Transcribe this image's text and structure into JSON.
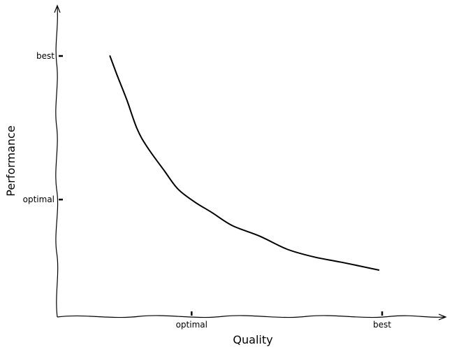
{
  "chart_data": {
    "type": "line",
    "title": "",
    "xlabel": "Quality",
    "ylabel": "Performance",
    "xlim": [
      0,
      1
    ],
    "ylim": [
      0,
      1
    ],
    "grid": false,
    "legend": "none",
    "x_ticks": [
      {
        "value": 0.44,
        "label": "optimal"
      },
      {
        "value": 1.0,
        "label": "best"
      }
    ],
    "y_ticks": [
      {
        "value": 0.45,
        "label": "optimal"
      },
      {
        "value": 1.0,
        "label": "best"
      }
    ],
    "series": [
      {
        "color": "#000000",
        "points": [
          [
            0.2,
            1.0
          ],
          [
            0.22,
            0.93
          ],
          [
            0.25,
            0.83
          ],
          [
            0.28,
            0.72
          ],
          [
            0.31,
            0.65
          ],
          [
            0.36,
            0.56
          ],
          [
            0.4,
            0.49
          ],
          [
            0.45,
            0.44
          ],
          [
            0.5,
            0.4
          ],
          [
            0.56,
            0.35
          ],
          [
            0.64,
            0.31
          ],
          [
            0.72,
            0.26
          ],
          [
            0.8,
            0.23
          ],
          [
            0.88,
            0.21
          ],
          [
            0.99,
            0.18
          ]
        ]
      }
    ]
  }
}
